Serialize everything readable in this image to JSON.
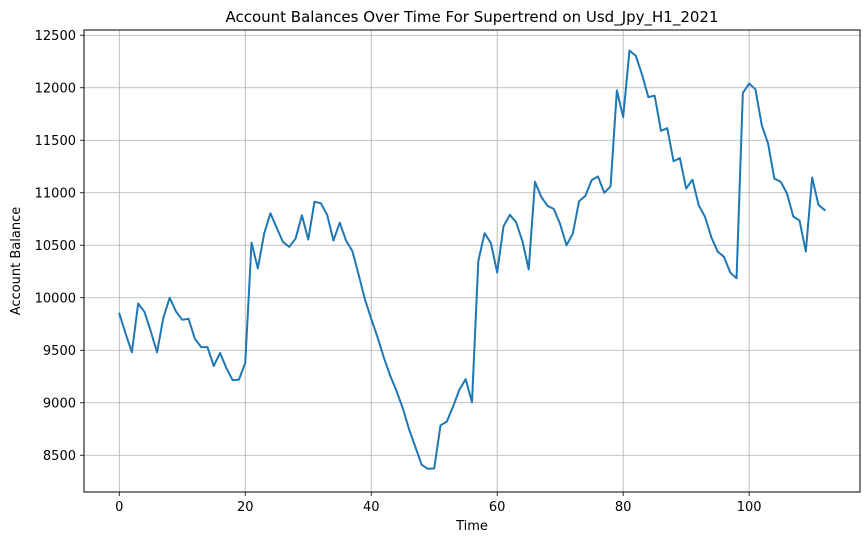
{
  "chart_data": {
    "type": "line",
    "title": "Account Balances Over Time For Supertrend on Usd_Jpy_H1_2021",
    "xlabel": "Time",
    "ylabel": "Account Balance",
    "xlim": [
      -5.6,
      117.6
    ],
    "ylim": [
      8150,
      12550
    ],
    "x_ticks": [
      0,
      20,
      40,
      60,
      80,
      100
    ],
    "y_ticks": [
      8500,
      9000,
      9500,
      10000,
      10500,
      11000,
      11500,
      12000,
      12500
    ],
    "grid": true,
    "line_color": "#1f77b4",
    "series": [
      {
        "values": [
          9850,
          9660,
          9480,
          9945,
          9865,
          9680,
          9480,
          9810,
          10000,
          9870,
          9790,
          9800,
          9610,
          9530,
          9530,
          9350,
          9475,
          9330,
          9215,
          9220,
          9380,
          10525,
          10280,
          10610,
          10805,
          10665,
          10530,
          10485,
          10565,
          10785,
          10555,
          10915,
          10900,
          10790,
          10545,
          10715,
          10545,
          10445,
          10220,
          9985,
          9800,
          9625,
          9430,
          9260,
          9115,
          8950,
          8750,
          8580,
          8410,
          8370,
          8375,
          8785,
          8820,
          8965,
          9125,
          9225,
          9005,
          10350,
          10615,
          10520,
          10240,
          10680,
          10790,
          10720,
          10540,
          10270,
          11105,
          10960,
          10875,
          10845,
          10700,
          10500,
          10610,
          10920,
          10970,
          11120,
          11155,
          11000,
          11060,
          11975,
          11720,
          12355,
          12305,
          12125,
          11910,
          11925,
          11590,
          11615,
          11300,
          11330,
          11040,
          11125,
          10880,
          10770,
          10575,
          10440,
          10390,
          10240,
          10185,
          11950,
          12040,
          11985,
          11645,
          11470,
          11135,
          11105,
          10995,
          10775,
          10735,
          10440,
          11145,
          10885,
          10835
        ]
      }
    ]
  }
}
